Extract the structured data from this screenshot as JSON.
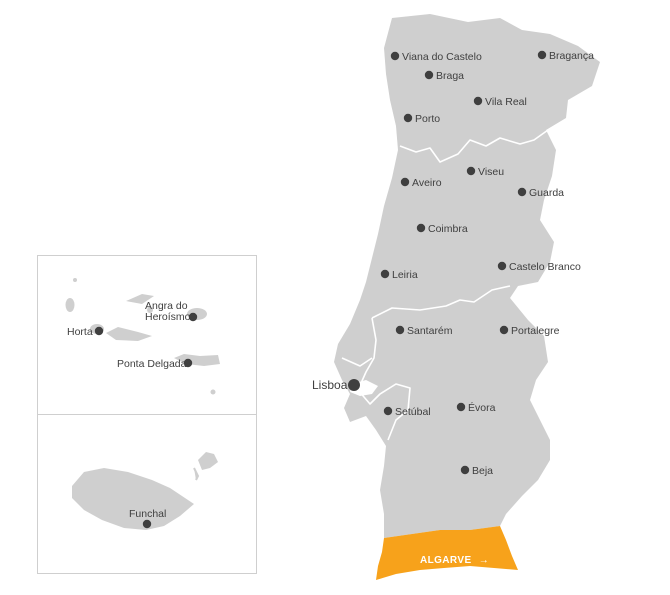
{
  "regions": {
    "algarve": {
      "label": "ALGARVE",
      "arrow": "→",
      "color": "#f7a21b"
    }
  },
  "cities": {
    "viana_do_castelo": "Viana do Castelo",
    "braganca": "Bragança",
    "braga": "Braga",
    "vila_real": "Vila Real",
    "porto": "Porto",
    "viseu": "Viseu",
    "aveiro": "Aveiro",
    "guarda": "Guarda",
    "coimbra": "Coimbra",
    "castelo_branco": "Castelo Branco",
    "leiria": "Leiria",
    "santarem": "Santarém",
    "portalegre": "Portalegre",
    "lisboa": "Lisboa",
    "setubal": "Setúbal",
    "evora": "Évora",
    "beja": "Beja"
  },
  "azores": {
    "angra_line1": "Angra do",
    "angra_line2": "Heroísmo",
    "horta": "Horta",
    "ponta_delgada": "Ponta Delgada"
  },
  "madeira": {
    "funchal": "Funchal"
  },
  "colors": {
    "land": "#cfcfcf",
    "border": "#ffffff",
    "dot": "#3f3f3f",
    "inset_frame": "#cfcfcf"
  }
}
